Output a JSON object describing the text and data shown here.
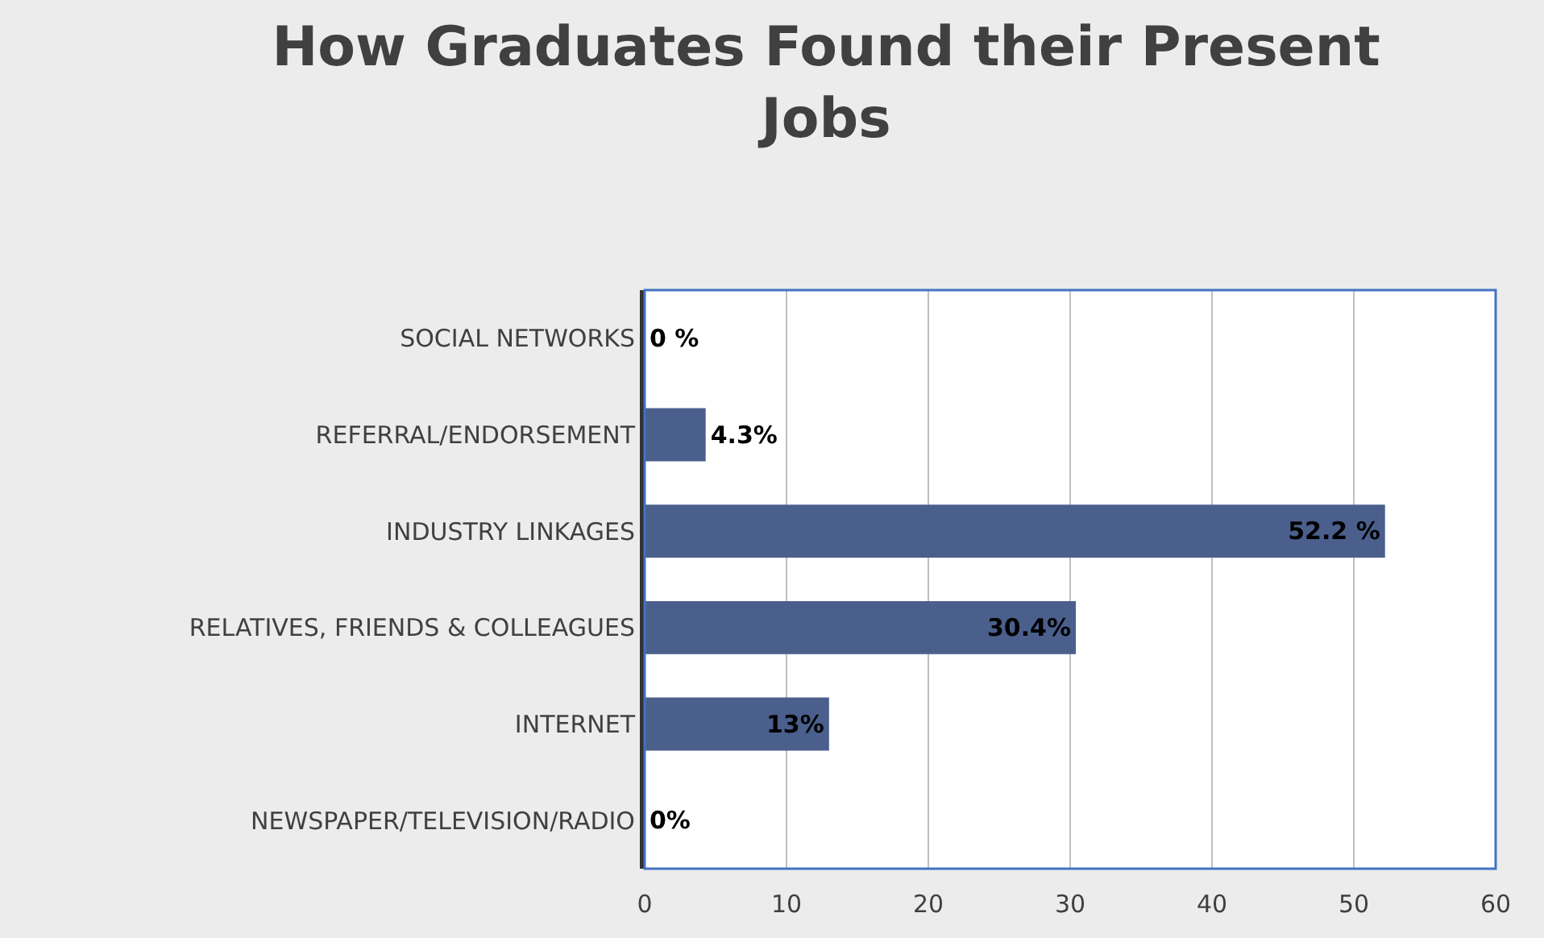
{
  "chart_data": {
    "type": "bar",
    "orientation": "horizontal",
    "title": "How Graduates Found their Present Jobs",
    "categories": [
      "SOCIAL NETWORKS",
      "REFERRAL/ENDORSEMENT",
      "INDUSTRY LINKAGES",
      "RELATIVES, FRIENDS & COLLEAGUES",
      "INTERNET",
      "NEWSPAPER/TELEVISION/RADIO"
    ],
    "values": [
      0,
      4.3,
      52.2,
      30.4,
      13,
      0
    ],
    "value_labels": [
      "0 %",
      "4.3%",
      "52.2 %",
      "30.4%",
      "13%",
      "0%"
    ],
    "color": "#4a5f8c",
    "xlim": [
      0,
      60
    ],
    "xticks": [
      0,
      10,
      20,
      30,
      40,
      50,
      60
    ],
    "grid": "x",
    "legend": false
  }
}
